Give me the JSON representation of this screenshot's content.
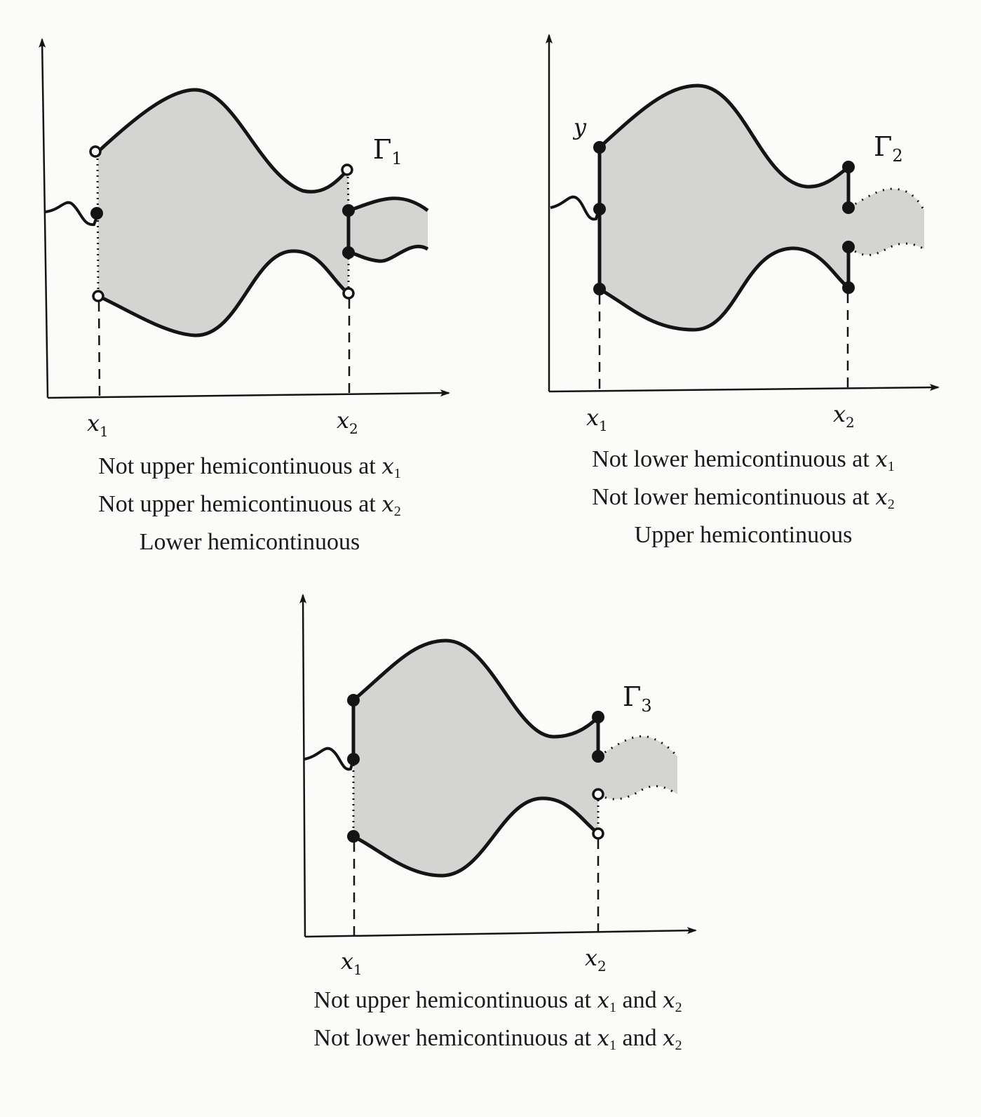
{
  "panels": [
    {
      "name": "gamma-1",
      "label_symbol": "Γ",
      "label_subscript": "1",
      "x1_label": "x",
      "x1_sub": "1",
      "x2_label": "x",
      "x2_sub": "2",
      "y_label": "",
      "captions": [
        {
          "text": "Not upper hemicontinuous at ",
          "var": "x",
          "sub": "1",
          "tail_text": "",
          "tail_var": "",
          "tail_sub": ""
        },
        {
          "text": "Not upper hemicontinuous at ",
          "var": "x",
          "sub": "2",
          "tail_text": "",
          "tail_var": "",
          "tail_sub": ""
        },
        {
          "text": "Lower hemicontinuous",
          "var": "",
          "sub": "",
          "tail_text": "",
          "tail_var": "",
          "tail_sub": ""
        }
      ]
    },
    {
      "name": "gamma-2",
      "label_symbol": "Γ",
      "label_subscript": "2",
      "x1_label": "x",
      "x1_sub": "1",
      "x2_label": "x",
      "x2_sub": "2",
      "y_label": "y",
      "captions": [
        {
          "text": "Not lower hemicontinuous at ",
          "var": "x",
          "sub": "1",
          "tail_text": "",
          "tail_var": "",
          "tail_sub": ""
        },
        {
          "text": "Not lower hemicontinuous at ",
          "var": "x",
          "sub": "2",
          "tail_text": "",
          "tail_var": "",
          "tail_sub": ""
        },
        {
          "text": "Upper hemicontinuous",
          "var": "",
          "sub": "",
          "tail_text": "",
          "tail_var": "",
          "tail_sub": ""
        }
      ]
    },
    {
      "name": "gamma-3",
      "label_symbol": "Γ",
      "label_subscript": "3",
      "x1_label": "x",
      "x1_sub": "1",
      "x2_label": "x",
      "x2_sub": "2",
      "y_label": "",
      "captions": [
        {
          "text": "Not upper hemicontinuous at ",
          "var": "x",
          "sub": "1",
          "tail_text": " and ",
          "tail_var": "x",
          "tail_sub": "2"
        },
        {
          "text": "Not lower hemicontinuous at ",
          "var": "x",
          "sub": "1",
          "tail_text": " and ",
          "tail_var": "x",
          "tail_sub": "2"
        }
      ]
    }
  ],
  "colors": {
    "fill": "#d4d4d2",
    "ink": "#141414",
    "background": "#fbfbfa"
  }
}
